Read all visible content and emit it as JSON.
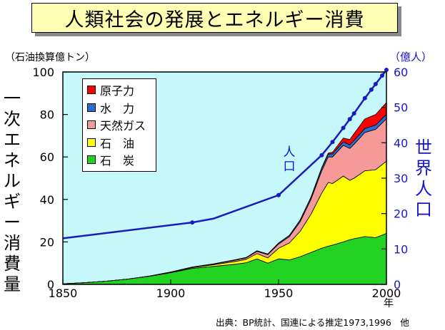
{
  "title": "人類社会の発展とエネルギー消費",
  "source": "出典：BP統計、国連による推定1973,1996　他",
  "colors": {
    "background": "#c6f7fa",
    "coal": "#22d322",
    "oil": "#ffff00",
    "gas": "#f59999",
    "hydro": "#2b6ecf",
    "nuclear": "#ff0000",
    "population": "#1a1ac0",
    "title_box": "#ffffb4"
  },
  "chart_data": {
    "type": "area",
    "title": "人類社会の発展とエネルギー消費",
    "xlabel": "年",
    "ylabel": "一次エネルギー消費量",
    "ylabel_unit": "（石油換算億トン）",
    "y2label": "世界人口",
    "y2label_unit": "（億人）",
    "xlim": [
      1850,
      2000
    ],
    "ylim": [
      0,
      100
    ],
    "y2lim": [
      0,
      60
    ],
    "x_ticks": [
      1850,
      1900,
      1950,
      2000
    ],
    "y_ticks": [
      0,
      20,
      40,
      60,
      80,
      100
    ],
    "y2_ticks": [
      0,
      10,
      20,
      30,
      40,
      50,
      60
    ],
    "grid": false,
    "legend_position": "top-left",
    "years": [
      1850,
      1860,
      1870,
      1880,
      1890,
      1900,
      1910,
      1920,
      1930,
      1935,
      1940,
      1945,
      1950,
      1955,
      1960,
      1965,
      1970,
      1973,
      1975,
      1980,
      1983,
      1985,
      1990,
      1995,
      2000
    ],
    "series": [
      {
        "name": "石　炭",
        "values": [
          0.3,
          0.8,
          1.5,
          2.5,
          3.8,
          5.5,
          7.5,
          8.5,
          9.5,
          10.2,
          12.0,
          10.0,
          12.0,
          11.5,
          13.0,
          15.0,
          17.0,
          18.0,
          18.5,
          20.0,
          21.0,
          21.5,
          22.5,
          22.0,
          24.0
        ]
      },
      {
        "name": "石　油",
        "values": [
          0,
          0,
          0,
          0,
          0.1,
          0.2,
          0.4,
          0.8,
          1.3,
          1.6,
          2.5,
          2.5,
          5.0,
          8.0,
          12.0,
          18.0,
          26.0,
          30.0,
          29.0,
          31.0,
          28.0,
          28.5,
          31.0,
          32.0,
          34.0
        ]
      },
      {
        "name": "天然ガス",
        "values": [
          0,
          0,
          0,
          0,
          0,
          0.1,
          0.2,
          0.3,
          0.6,
          0.7,
          1.0,
          1.5,
          2.0,
          3.0,
          4.5,
          7.0,
          10.5,
          12.0,
          12.5,
          14.5,
          15.0,
          16.0,
          18.0,
          19.0,
          20.0
        ]
      },
      {
        "name": "水　力",
        "values": [
          0,
          0,
          0,
          0,
          0,
          0,
          0.1,
          0.1,
          0.2,
          0.2,
          0.3,
          0.3,
          0.5,
          0.6,
          0.8,
          1.0,
          1.2,
          1.3,
          1.4,
          1.6,
          1.7,
          1.8,
          1.9,
          2.0,
          2.1
        ]
      },
      {
        "name": "原子力",
        "values": [
          0,
          0,
          0,
          0,
          0,
          0,
          0,
          0,
          0,
          0,
          0,
          0,
          0,
          0,
          0,
          0,
          0.3,
          0.5,
          0.8,
          1.8,
          2.5,
          3.2,
          4.5,
          5.0,
          5.5
        ]
      }
    ],
    "population": {
      "name": "人口",
      "x": [
        1850,
        1910,
        1920,
        1950,
        1970,
        1975,
        1980,
        1983,
        1985,
        1990,
        1993,
        1995,
        1998,
        2000
      ],
      "values": [
        13.0,
        17.5,
        18.6,
        25.2,
        36.5,
        40.2,
        44.2,
        46.7,
        48.3,
        52.6,
        55.0,
        56.6,
        59.0,
        60.6
      ],
      "markers": [
        1910,
        1950,
        1970,
        1975,
        1980,
        1983,
        1985,
        1990,
        1993,
        1995,
        1998,
        2000
      ]
    }
  }
}
